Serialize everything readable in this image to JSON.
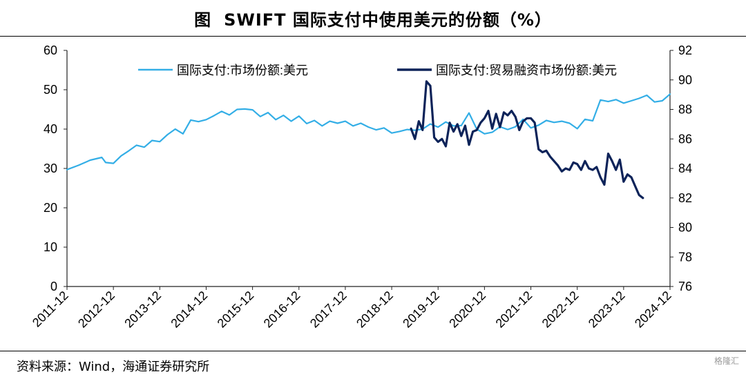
{
  "figure": {
    "label": "图",
    "title": "SWIFT 国际支付中使用美元的份额（%）",
    "source": "资料来源：Wind，海通证券研究所",
    "watermark": "格隆汇"
  },
  "colors": {
    "market_share": "#33aee6",
    "trade_finance": "#0d2359"
  },
  "chart_data": {
    "type": "line",
    "title": "SWIFT 国际支付中使用美元的份额（%）",
    "x_tick_labels": [
      "2011-12",
      "2012-12",
      "2013-12",
      "2014-12",
      "2015-12",
      "2016-12",
      "2017-12",
      "2018-12",
      "2019-12",
      "2020-12",
      "2021-12",
      "2022-12",
      "2023-12",
      "2024-12"
    ],
    "x_range": [
      "2011-12",
      "2024-12"
    ],
    "y_left": {
      "range": [
        0,
        60
      ],
      "ticks": [
        0,
        10,
        20,
        30,
        40,
        50,
        60
      ]
    },
    "y_right": {
      "range": [
        76,
        92
      ],
      "ticks": [
        76,
        78,
        80,
        82,
        84,
        86,
        88,
        90,
        92
      ]
    },
    "grid": false,
    "legend_position": "top",
    "series": [
      {
        "name": "国际支付:市场份额:美元",
        "axis": "left",
        "color": "#33aee6",
        "points": [
          [
            "2011-12",
            29.7
          ],
          [
            "2012-03",
            30.8
          ],
          [
            "2012-06",
            32.1
          ],
          [
            "2012-09",
            32.8
          ],
          [
            "2012-10",
            31.5
          ],
          [
            "2012-12",
            31.3
          ],
          [
            "2013-02",
            33.2
          ],
          [
            "2013-04",
            34.5
          ],
          [
            "2013-06",
            35.9
          ],
          [
            "2013-08",
            35.4
          ],
          [
            "2013-10",
            37.1
          ],
          [
            "2013-12",
            36.8
          ],
          [
            "2014-02",
            38.6
          ],
          [
            "2014-04",
            40.0
          ],
          [
            "2014-06",
            38.8
          ],
          [
            "2014-08",
            42.3
          ],
          [
            "2014-10",
            41.9
          ],
          [
            "2014-12",
            42.4
          ],
          [
            "2015-02",
            43.4
          ],
          [
            "2015-04",
            44.5
          ],
          [
            "2015-06",
            43.6
          ],
          [
            "2015-08",
            45.0
          ],
          [
            "2015-10",
            45.1
          ],
          [
            "2015-12",
            44.9
          ],
          [
            "2016-02",
            43.2
          ],
          [
            "2016-04",
            44.2
          ],
          [
            "2016-06",
            42.4
          ],
          [
            "2016-08",
            43.5
          ],
          [
            "2016-10",
            42.0
          ],
          [
            "2016-12",
            43.3
          ],
          [
            "2017-02",
            41.4
          ],
          [
            "2017-04",
            42.2
          ],
          [
            "2017-06",
            40.8
          ],
          [
            "2017-08",
            42.0
          ],
          [
            "2017-10",
            41.5
          ],
          [
            "2017-12",
            42.0
          ],
          [
            "2018-02",
            40.8
          ],
          [
            "2018-04",
            41.5
          ],
          [
            "2018-06",
            40.5
          ],
          [
            "2018-08",
            39.8
          ],
          [
            "2018-10",
            40.3
          ],
          [
            "2018-12",
            39.0
          ],
          [
            "2019-02",
            39.4
          ],
          [
            "2019-04",
            39.9
          ],
          [
            "2019-06",
            39.7
          ],
          [
            "2019-08",
            40.0
          ],
          [
            "2019-10",
            41.3
          ],
          [
            "2019-12",
            40.5
          ],
          [
            "2020-02",
            41.8
          ],
          [
            "2020-04",
            40.8
          ],
          [
            "2020-06",
            40.9
          ],
          [
            "2020-08",
            44.1
          ],
          [
            "2020-10",
            40.0
          ],
          [
            "2020-12",
            38.8
          ],
          [
            "2021-02",
            39.2
          ],
          [
            "2021-04",
            40.6
          ],
          [
            "2021-06",
            39.9
          ],
          [
            "2021-08",
            40.6
          ],
          [
            "2021-10",
            42.5
          ],
          [
            "2021-12",
            40.3
          ],
          [
            "2022-02",
            41.0
          ],
          [
            "2022-04",
            42.2
          ],
          [
            "2022-06",
            41.7
          ],
          [
            "2022-08",
            42.0
          ],
          [
            "2022-10",
            41.5
          ],
          [
            "2022-12",
            40.1
          ],
          [
            "2023-02",
            42.5
          ],
          [
            "2023-04",
            42.1
          ],
          [
            "2023-06",
            47.4
          ],
          [
            "2023-08",
            47.0
          ],
          [
            "2023-10",
            47.5
          ],
          [
            "2023-12",
            46.6
          ],
          [
            "2024-02",
            47.2
          ],
          [
            "2024-04",
            47.8
          ],
          [
            "2024-06",
            48.6
          ],
          [
            "2024-08",
            46.9
          ],
          [
            "2024-10",
            47.2
          ],
          [
            "2024-12",
            48.9
          ]
        ]
      },
      {
        "name": "国际支付:贸易融资市场份额:美元",
        "axis": "right",
        "color": "#0d2359",
        "points": [
          [
            "2019-05",
            86.7
          ],
          [
            "2019-06",
            86.0
          ],
          [
            "2019-07",
            87.2
          ],
          [
            "2019-08",
            86.6
          ],
          [
            "2019-09",
            89.9
          ],
          [
            "2019-10",
            89.6
          ],
          [
            "2019-11",
            86.1
          ],
          [
            "2019-12",
            85.8
          ],
          [
            "2020-01",
            86.0
          ],
          [
            "2020-02",
            85.5
          ],
          [
            "2020-03",
            87.1
          ],
          [
            "2020-04",
            86.5
          ],
          [
            "2020-05",
            87.0
          ],
          [
            "2020-06",
            86.2
          ],
          [
            "2020-07",
            86.9
          ],
          [
            "2020-08",
            85.6
          ],
          [
            "2020-09",
            86.5
          ],
          [
            "2020-10",
            86.6
          ],
          [
            "2020-11",
            87.1
          ],
          [
            "2020-12",
            87.4
          ],
          [
            "2021-01",
            87.9
          ],
          [
            "2021-02",
            86.7
          ],
          [
            "2021-03",
            87.7
          ],
          [
            "2021-04",
            86.8
          ],
          [
            "2021-05",
            87.8
          ],
          [
            "2021-06",
            87.6
          ],
          [
            "2021-07",
            87.9
          ],
          [
            "2021-08",
            87.5
          ],
          [
            "2021-09",
            86.6
          ],
          [
            "2021-10",
            87.2
          ],
          [
            "2021-11",
            87.4
          ],
          [
            "2021-12",
            87.4
          ],
          [
            "2022-01",
            87.1
          ],
          [
            "2022-02",
            85.3
          ],
          [
            "2022-03",
            85.1
          ],
          [
            "2022-04",
            85.2
          ],
          [
            "2022-05",
            84.8
          ],
          [
            "2022-06",
            84.5
          ],
          [
            "2022-07",
            84.2
          ],
          [
            "2022-08",
            83.8
          ],
          [
            "2022-09",
            84.0
          ],
          [
            "2022-10",
            83.9
          ],
          [
            "2022-11",
            84.4
          ],
          [
            "2022-12",
            84.3
          ],
          [
            "2023-01",
            83.9
          ],
          [
            "2023-02",
            84.5
          ],
          [
            "2023-03",
            84.0
          ],
          [
            "2023-04",
            83.9
          ],
          [
            "2023-05",
            84.1
          ],
          [
            "2023-06",
            83.4
          ],
          [
            "2023-07",
            82.9
          ],
          [
            "2023-08",
            85.0
          ],
          [
            "2023-09",
            84.5
          ],
          [
            "2023-10",
            83.9
          ],
          [
            "2023-11",
            84.6
          ],
          [
            "2023-12",
            83.1
          ],
          [
            "2024-01",
            83.6
          ],
          [
            "2024-02",
            83.4
          ],
          [
            "2024-03",
            82.8
          ],
          [
            "2024-04",
            82.2
          ],
          [
            "2024-05",
            82.0
          ]
        ]
      }
    ]
  }
}
